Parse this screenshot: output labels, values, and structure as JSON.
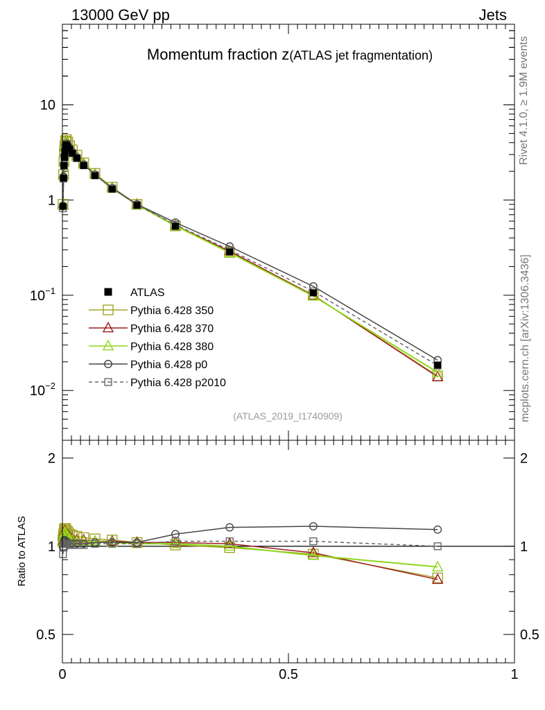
{
  "header": {
    "left": "13000 GeV pp",
    "right": "Jets"
  },
  "side_labels": {
    "rivet": "Rivet 4.1.0, ≥ 1.9M events",
    "mcplots": "mcplots.cern.ch [arXiv:1306.3436]"
  },
  "chart_data": [
    {
      "type": "line",
      "panel": "main",
      "title_main": "Momentum fraction z",
      "title_sub": "(ATLAS jet fragmentation)",
      "watermark": "(ATLAS_2019_I1740909)",
      "xlabel": "",
      "ylabel": "",
      "xlim": [
        0,
        1
      ],
      "ylim": [
        0.003,
        70
      ],
      "yscale": "log",
      "ytick_labels": [
        {
          "value": 0.01,
          "base": "10",
          "exp": "−2"
        },
        {
          "value": 0.1,
          "base": "10",
          "exp": "−1"
        },
        {
          "value": 1,
          "base": "1",
          "exp": ""
        },
        {
          "value": 10,
          "base": "10",
          "exp": ""
        }
      ],
      "legend_position": "left-middle",
      "x": [
        0.0013,
        0.0025,
        0.0035,
        0.0045,
        0.0055,
        0.007,
        0.009,
        0.012,
        0.016,
        0.022,
        0.032,
        0.047,
        0.072,
        0.11,
        0.165,
        0.25,
        0.37,
        0.555,
        0.83
      ],
      "series": [
        {
          "name": "ATLAS",
          "style": "data",
          "color": "#000000",
          "values": [
            0.86,
            1.7,
            2.3,
            2.8,
            3.2,
            3.6,
            3.8,
            3.6,
            3.4,
            3.1,
            2.75,
            2.3,
            1.8,
            1.3,
            0.88,
            0.53,
            0.285,
            0.106,
            0.0185
          ]
        },
        {
          "name": "Pythia 6.428 350",
          "style": "open-square",
          "color": "#a3a32b",
          "values": [
            0.9,
            1.85,
            2.55,
            3.2,
            3.7,
            4.15,
            4.3,
            4.05,
            3.7,
            3.35,
            2.95,
            2.45,
            1.9,
            1.36,
            0.9,
            0.535,
            0.282,
            0.1,
            0.0142
          ]
        },
        {
          "name": "Pythia 6.428 370",
          "style": "open-triangle",
          "color": "#9e1b1b",
          "values": [
            0.89,
            1.82,
            2.5,
            3.12,
            3.6,
            4.0,
            4.15,
            3.9,
            3.6,
            3.25,
            2.88,
            2.4,
            1.86,
            1.34,
            0.9,
            0.54,
            0.29,
            0.1,
            0.0139
          ]
        },
        {
          "name": "Pythia 6.428 380",
          "style": "open-triangle",
          "color": "#8fd61a",
          "values": [
            0.88,
            1.8,
            2.48,
            3.1,
            3.55,
            3.95,
            4.1,
            3.85,
            3.55,
            3.2,
            2.85,
            2.38,
            1.85,
            1.33,
            0.89,
            0.535,
            0.28,
            0.098,
            0.0155
          ]
        },
        {
          "name": "Pythia 6.428 p0",
          "style": "open-circle",
          "color": "#454545",
          "values": [
            0.86,
            1.75,
            2.4,
            2.95,
            3.35,
            3.75,
            3.9,
            3.7,
            3.45,
            3.15,
            2.8,
            2.35,
            1.84,
            1.33,
            0.9,
            0.58,
            0.325,
            0.124,
            0.0208
          ]
        },
        {
          "name": "Pythia 6.428 p2010",
          "style": "dashed-open-square",
          "color": "#666666",
          "values": [
            0.82,
            1.68,
            2.3,
            2.85,
            3.25,
            3.65,
            3.85,
            3.65,
            3.4,
            3.1,
            2.75,
            2.32,
            1.83,
            1.32,
            0.89,
            0.55,
            0.298,
            0.11,
            0.0183
          ]
        }
      ]
    },
    {
      "type": "line",
      "panel": "ratio",
      "ylabel": "Ratio to ATLAS",
      "xlim": [
        0,
        1
      ],
      "ylim": [
        0.4,
        2.3
      ],
      "yscale": "log",
      "xtick_labels": [
        {
          "value": 0,
          "label": "0"
        },
        {
          "value": 0.5,
          "label": "0.5"
        },
        {
          "value": 1,
          "label": "1"
        }
      ],
      "ytick_labels": [
        {
          "value": 0.5,
          "label": "0.5"
        },
        {
          "value": 1,
          "label": "1"
        },
        {
          "value": 2,
          "label": "2"
        }
      ],
      "x": [
        0.0013,
        0.0025,
        0.0035,
        0.0045,
        0.0055,
        0.007,
        0.009,
        0.012,
        0.016,
        0.022,
        0.032,
        0.047,
        0.072,
        0.11,
        0.165,
        0.25,
        0.37,
        0.555,
        0.83
      ],
      "series": [
        {
          "name": "Pythia 6.428 350",
          "style": "open-square",
          "color": "#a3a32b",
          "values": [
            1.05,
            1.09,
            1.11,
            1.14,
            1.15,
            1.15,
            1.13,
            1.12,
            1.1,
            1.09,
            1.08,
            1.07,
            1.06,
            1.05,
            1.03,
            1.01,
            0.99,
            0.94,
            0.78
          ]
        },
        {
          "name": "Pythia 6.428 370",
          "style": "open-triangle",
          "color": "#9e1b1b",
          "values": [
            1.04,
            1.08,
            1.1,
            1.12,
            1.13,
            1.12,
            1.1,
            1.09,
            1.07,
            1.06,
            1.05,
            1.05,
            1.04,
            1.04,
            1.03,
            1.03,
            1.02,
            0.95,
            0.77
          ]
        },
        {
          "name": "Pythia 6.428 380",
          "style": "open-triangle",
          "color": "#8fd61a",
          "values": [
            1.03,
            1.07,
            1.09,
            1.11,
            1.12,
            1.11,
            1.09,
            1.08,
            1.06,
            1.05,
            1.04,
            1.04,
            1.04,
            1.03,
            1.02,
            1.02,
            1.0,
            0.93,
            0.85
          ]
        },
        {
          "name": "Pythia 6.428 p0",
          "style": "open-circle",
          "color": "#454545",
          "values": [
            0.99,
            1.02,
            1.04,
            1.05,
            1.05,
            1.04,
            1.03,
            1.03,
            1.02,
            1.02,
            1.02,
            1.02,
            1.03,
            1.03,
            1.03,
            1.1,
            1.16,
            1.17,
            1.14
          ]
        },
        {
          "name": "Pythia 6.428 p2010",
          "style": "dashed-open-square",
          "color": "#666666",
          "values": [
            0.94,
            0.99,
            1.0,
            1.02,
            1.02,
            1.02,
            1.02,
            1.02,
            1.01,
            1.01,
            1.01,
            1.01,
            1.02,
            1.02,
            1.02,
            1.04,
            1.04,
            1.04,
            1.0
          ]
        }
      ]
    }
  ]
}
